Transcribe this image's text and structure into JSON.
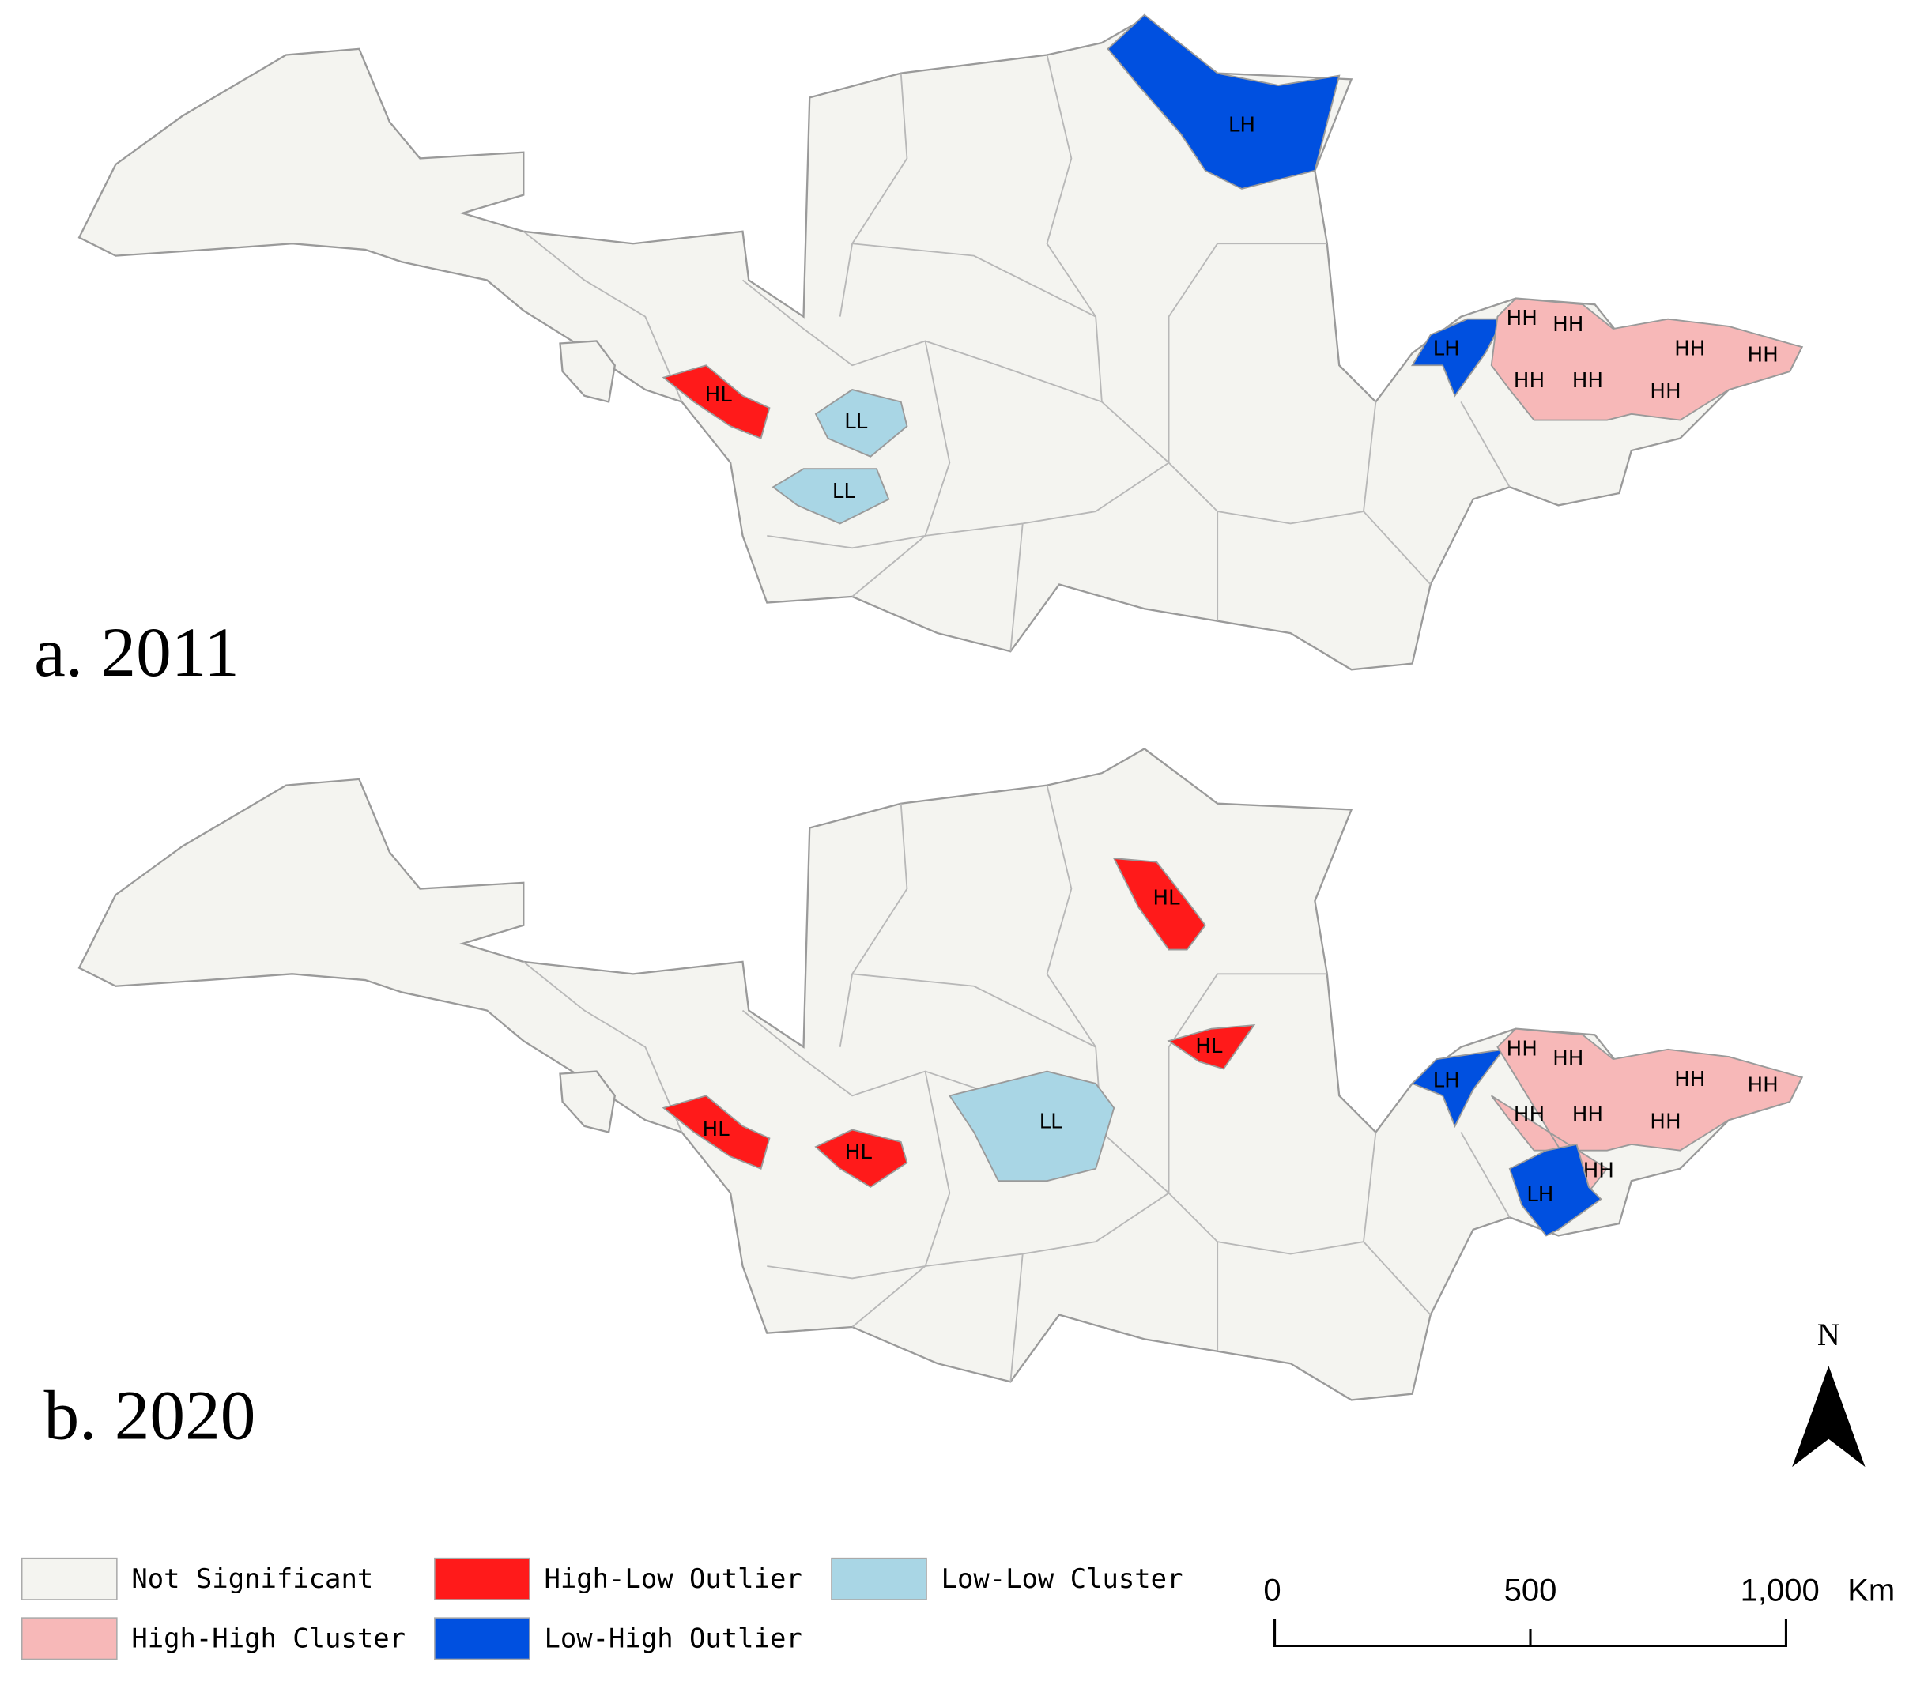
{
  "maps": [
    {
      "label": "a. 2011",
      "regions": [
        {
          "color": "#0050e0",
          "labels": [
            "LH"
          ]
        },
        {
          "color": "#ff1a1a",
          "labels": [
            "HL"
          ]
        },
        {
          "color": "#a9d6e5",
          "labels": [
            "LL"
          ]
        },
        {
          "color": "#a9d6e5",
          "labels": [
            "LL"
          ]
        },
        {
          "color": "#0050e0",
          "labels": [
            "LH"
          ]
        },
        {
          "color": "#f7b8b8",
          "labels": [
            "HH",
            "HH",
            "HH",
            "HH",
            "HH",
            "HH",
            "HH"
          ]
        }
      ]
    },
    {
      "label": "b. 2020",
      "regions": [
        {
          "color": "#ff1a1a",
          "labels": [
            "HL"
          ]
        },
        {
          "color": "#ff1a1a",
          "labels": [
            "HL"
          ]
        },
        {
          "color": "#ff1a1a",
          "labels": [
            "HL"
          ]
        },
        {
          "color": "#ff1a1a",
          "labels": [
            "HL"
          ]
        },
        {
          "color": "#a9d6e5",
          "labels": [
            "LL"
          ]
        },
        {
          "color": "#0050e0",
          "labels": [
            "LH"
          ]
        },
        {
          "color": "#f7b8b8",
          "labels": [
            "HH",
            "HH",
            "HH",
            "HH",
            "HH",
            "HH",
            "HH",
            "HH"
          ]
        },
        {
          "color": "#0050e0",
          "labels": [
            "LH"
          ]
        }
      ]
    }
  ],
  "legend": [
    {
      "name": "Not Significant",
      "color": "#f4f4f0"
    },
    {
      "name": "High-High Cluster",
      "color": "#f7b8b8"
    },
    {
      "name": "High-Low Outlier",
      "color": "#ff1a1a"
    },
    {
      "name": "Low-High Outlier",
      "color": "#0050e0"
    },
    {
      "name": "Low-Low Cluster",
      "color": "#a9d6e5"
    }
  ],
  "scale_bar": {
    "ticks": [
      "0",
      "500",
      "1,000"
    ],
    "unit": "Km"
  },
  "north": "N"
}
